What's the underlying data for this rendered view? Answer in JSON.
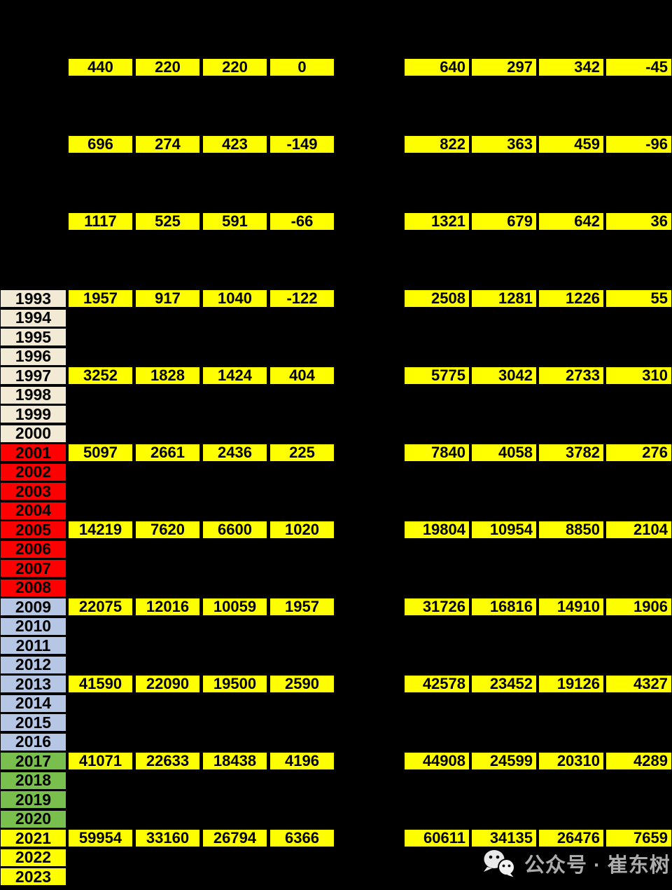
{
  "chart_data": {
    "type": "table",
    "note_layout": {
      "left_group_align": "center",
      "right_group_align": "right"
    },
    "rows": [
      {
        "offset": -12,
        "year": "",
        "left": [
          440,
          220,
          220,
          0
        ],
        "right": [
          640,
          297,
          342,
          -45
        ]
      },
      {
        "offset": -8,
        "year": "",
        "left": [
          696,
          274,
          423,
          -149
        ],
        "right": [
          822,
          363,
          459,
          -96
        ]
      },
      {
        "offset": -4,
        "year": "",
        "left": [
          1117,
          525,
          591,
          -66
        ],
        "right": [
          1321,
          679,
          642,
          36
        ]
      },
      {
        "offset": 0,
        "year": "1993",
        "left": [
          1957,
          917,
          1040,
          -122
        ],
        "right": [
          2508,
          1281,
          1226,
          55
        ]
      },
      {
        "offset": 4,
        "year": "1997",
        "left": [
          3252,
          1828,
          1424,
          404
        ],
        "right": [
          5775,
          3042,
          2733,
          310
        ]
      },
      {
        "offset": 8,
        "year": "2001",
        "left": [
          5097,
          2661,
          2436,
          225
        ],
        "right": [
          7840,
          4058,
          3782,
          276
        ]
      },
      {
        "offset": 12,
        "year": "2005",
        "left": [
          14219,
          7620,
          6600,
          1020
        ],
        "right": [
          19804,
          10954,
          8850,
          2104
        ]
      },
      {
        "offset": 16,
        "year": "2009",
        "left": [
          22075,
          12016,
          10059,
          1957
        ],
        "right": [
          31726,
          16816,
          14910,
          1906
        ]
      },
      {
        "offset": 20,
        "year": "2013",
        "left": [
          41590,
          22090,
          19500,
          2590
        ],
        "right": [
          42578,
          23452,
          19126,
          4327
        ]
      },
      {
        "offset": 24,
        "year": "2017",
        "left": [
          41071,
          22633,
          18438,
          4196
        ],
        "right": [
          44908,
          24599,
          20310,
          4289
        ]
      },
      {
        "offset": 28,
        "year": "2021",
        "left": [
          59954,
          33160,
          26794,
          6366
        ],
        "right": [
          60611,
          34135,
          26476,
          7659
        ]
      }
    ],
    "year_color_groups": [
      {
        "years": "1993-2000",
        "color": "#F2EAD5"
      },
      {
        "years": "2001-2008",
        "color": "#FF0000"
      },
      {
        "years": "2009-2016",
        "color": "#B5C7E5"
      },
      {
        "years": "2017-2020",
        "color": "#79BF4E"
      },
      {
        "years": "2021-2023",
        "color": "#FFFF00"
      }
    ]
  },
  "years": [
    {
      "label": "1993",
      "color": "beige"
    },
    {
      "label": "1994",
      "color": "beige"
    },
    {
      "label": "1995",
      "color": "beige"
    },
    {
      "label": "1996",
      "color": "beige"
    },
    {
      "label": "1997",
      "color": "beige"
    },
    {
      "label": "1998",
      "color": "beige"
    },
    {
      "label": "1999",
      "color": "beige"
    },
    {
      "label": "2000",
      "color": "beige"
    },
    {
      "label": "2001",
      "color": "red"
    },
    {
      "label": "2002",
      "color": "red"
    },
    {
      "label": "2003",
      "color": "red"
    },
    {
      "label": "2004",
      "color": "red"
    },
    {
      "label": "2005",
      "color": "red"
    },
    {
      "label": "2006",
      "color": "red"
    },
    {
      "label": "2007",
      "color": "red"
    },
    {
      "label": "2008",
      "color": "red"
    },
    {
      "label": "2009",
      "color": "blue"
    },
    {
      "label": "2010",
      "color": "blue"
    },
    {
      "label": "2011",
      "color": "blue"
    },
    {
      "label": "2012",
      "color": "blue"
    },
    {
      "label": "2013",
      "color": "blue"
    },
    {
      "label": "2014",
      "color": "blue"
    },
    {
      "label": "2015",
      "color": "blue"
    },
    {
      "label": "2016",
      "color": "blue"
    },
    {
      "label": "2017",
      "color": "green"
    },
    {
      "label": "2018",
      "color": "green"
    },
    {
      "label": "2019",
      "color": "green"
    },
    {
      "label": "2020",
      "color": "green"
    },
    {
      "label": "2021",
      "color": "yellow"
    },
    {
      "label": "2022",
      "color": "yellow"
    },
    {
      "label": "2023",
      "color": "yellow"
    }
  ],
  "colors": {
    "background": "#000000",
    "beige": "#F2EAD5",
    "red": "#FF0000",
    "blue": "#B5C7E5",
    "green": "#79BF4E",
    "yellow": "#FFFF00",
    "data_cell": "#FFFF00",
    "cell_text": "#000000",
    "watermark_text": "#ACACAC"
  },
  "watermark": {
    "text": "公众号 · 崔东树",
    "icon": "wechat-icon"
  }
}
